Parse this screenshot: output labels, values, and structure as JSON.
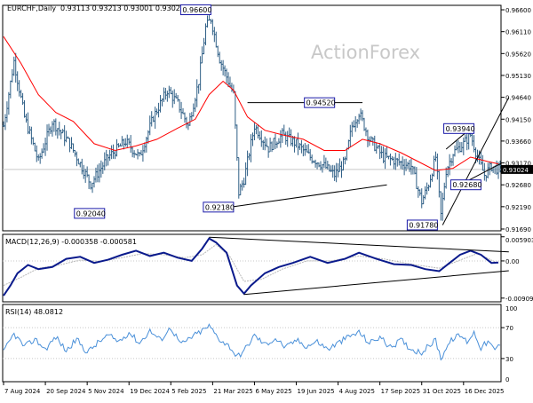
{
  "header": {
    "symbol": "EURCHF,Daily",
    "ohlc": "0.93113 0.93213 0.93001 0.93024"
  },
  "watermark": "ActionForex",
  "colors": {
    "bars": "#2f5f86",
    "ma": "#ff0000",
    "macd_line": "#0a1a8c",
    "signal_line": "#b8b8b8",
    "rsi_line": "#4a90d9",
    "trendline": "#000000",
    "grid": "#c8c8c8",
    "current_price_box": "#000000"
  },
  "chart_data": [
    {
      "type": "bar",
      "panel": "price",
      "title": "EURCHF,Daily",
      "y_ticks": [
        "0.96600",
        "0.96110",
        "0.95620",
        "0.95130",
        "0.94640",
        "0.94150",
        "0.93660",
        "0.93170",
        "0.92680",
        "0.92190",
        "0.91690"
      ],
      "ylim": [
        0.9165,
        0.967
      ],
      "current_price": "0.93024",
      "x_labels": [
        "7 Aug 2024",
        "20 Sep 2024",
        "5 Nov 2024",
        "19 Dec 2024",
        "5 Feb 2025",
        "21 Mar 2025",
        "6 May 2025",
        "19 Jun 2025",
        "4 Aug 2025",
        "17 Sep 2025",
        "31 Oct 2025",
        "16 Dec 2025"
      ],
      "anchors": [
        {
          "i": 0,
          "v": 0.94
        },
        {
          "i": 6,
          "v": 0.9545
        },
        {
          "i": 12,
          "v": 0.942
        },
        {
          "i": 20,
          "v": 0.932
        },
        {
          "i": 28,
          "v": 0.941
        },
        {
          "i": 38,
          "v": 0.936
        },
        {
          "i": 50,
          "v": 0.927
        },
        {
          "i": 60,
          "v": 0.933
        },
        {
          "i": 70,
          "v": 0.9365
        },
        {
          "i": 78,
          "v": 0.933
        },
        {
          "i": 86,
          "v": 0.942
        },
        {
          "i": 94,
          "v": 0.948
        },
        {
          "i": 100,
          "v": 0.945
        },
        {
          "i": 106,
          "v": 0.94
        },
        {
          "i": 112,
          "v": 0.95
        },
        {
          "i": 116,
          "v": 0.962
        },
        {
          "i": 119,
          "v": 0.964
        },
        {
          "i": 124,
          "v": 0.955
        },
        {
          "i": 128,
          "v": 0.951
        },
        {
          "i": 132,
          "v": 0.947
        },
        {
          "i": 135,
          "v": 0.925
        },
        {
          "i": 138,
          "v": 0.928
        },
        {
          "i": 144,
          "v": 0.94
        },
        {
          "i": 152,
          "v": 0.935
        },
        {
          "i": 160,
          "v": 0.938
        },
        {
          "i": 168,
          "v": 0.936
        },
        {
          "i": 176,
          "v": 0.933
        },
        {
          "i": 184,
          "v": 0.931
        },
        {
          "i": 190,
          "v": 0.929
        },
        {
          "i": 196,
          "v": 0.932
        },
        {
          "i": 200,
          "v": 0.94
        },
        {
          "i": 204,
          "v": 0.943
        },
        {
          "i": 210,
          "v": 0.937
        },
        {
          "i": 218,
          "v": 0.933
        },
        {
          "i": 226,
          "v": 0.932
        },
        {
          "i": 234,
          "v": 0.931
        },
        {
          "i": 240,
          "v": 0.923
        },
        {
          "i": 244,
          "v": 0.927
        },
        {
          "i": 248,
          "v": 0.933
        },
        {
          "i": 251,
          "v": 0.92
        },
        {
          "i": 254,
          "v": 0.93
        },
        {
          "i": 258,
          "v": 0.934
        },
        {
          "i": 264,
          "v": 0.936
        },
        {
          "i": 268,
          "v": 0.938
        },
        {
          "i": 272,
          "v": 0.933
        },
        {
          "i": 276,
          "v": 0.929
        },
        {
          "i": 280,
          "v": 0.931
        },
        {
          "i": 284,
          "v": 0.9302
        }
      ],
      "moving_average": [
        {
          "i": 0,
          "v": 0.96
        },
        {
          "i": 10,
          "v": 0.954
        },
        {
          "i": 20,
          "v": 0.947
        },
        {
          "i": 30,
          "v": 0.943
        },
        {
          "i": 40,
          "v": 0.941
        },
        {
          "i": 52,
          "v": 0.936
        },
        {
          "i": 64,
          "v": 0.9345
        },
        {
          "i": 76,
          "v": 0.9355
        },
        {
          "i": 88,
          "v": 0.937
        },
        {
          "i": 100,
          "v": 0.9395
        },
        {
          "i": 110,
          "v": 0.9415
        },
        {
          "i": 118,
          "v": 0.947
        },
        {
          "i": 126,
          "v": 0.95
        },
        {
          "i": 132,
          "v": 0.948
        },
        {
          "i": 140,
          "v": 0.942
        },
        {
          "i": 150,
          "v": 0.939
        },
        {
          "i": 160,
          "v": 0.938
        },
        {
          "i": 172,
          "v": 0.937
        },
        {
          "i": 184,
          "v": 0.9345
        },
        {
          "i": 196,
          "v": 0.9345
        },
        {
          "i": 206,
          "v": 0.937
        },
        {
          "i": 216,
          "v": 0.936
        },
        {
          "i": 228,
          "v": 0.934
        },
        {
          "i": 238,
          "v": 0.932
        },
        {
          "i": 248,
          "v": 0.93
        },
        {
          "i": 258,
          "v": 0.9305
        },
        {
          "i": 268,
          "v": 0.933
        },
        {
          "i": 278,
          "v": 0.932
        },
        {
          "i": 284,
          "v": 0.9315
        }
      ],
      "labels": [
        {
          "text": "0.96600",
          "i": 119,
          "v": 0.966,
          "side": "left"
        },
        {
          "text": "0.94520",
          "i": 190,
          "v": 0.9452,
          "side": "left"
        },
        {
          "text": "0.93940",
          "i": 270,
          "v": 0.9394,
          "side": "left"
        },
        {
          "text": "0.92040",
          "i": 58,
          "v": 0.9204,
          "side": "left"
        },
        {
          "text": "0.92180",
          "i": 132,
          "v": 0.9218,
          "side": "left"
        },
        {
          "text": "0.92680",
          "i": 274,
          "v": 0.9268,
          "side": "left"
        },
        {
          "text": "0.91780",
          "i": 249,
          "v": 0.9178,
          "side": "left"
        }
      ],
      "trendlines": [
        {
          "from": {
            "i": 140,
            "v": 0.9452
          },
          "to": {
            "i": 206,
            "v": 0.9452
          }
        },
        {
          "from": {
            "i": 130,
            "v": 0.9218
          },
          "to": {
            "i": 220,
            "v": 0.9268
          }
        },
        {
          "from": {
            "i": 254,
            "v": 0.9348
          },
          "to": {
            "i": 268,
            "v": 0.9394
          }
        },
        {
          "from": {
            "i": 252,
            "v": 0.9178
          },
          "to": {
            "i": 290,
            "v": 0.9464
          }
        },
        {
          "from": {
            "i": 262,
            "v": 0.9268
          },
          "to": {
            "i": 286,
            "v": 0.9317
          }
        }
      ]
    },
    {
      "type": "line",
      "panel": "macd",
      "title": "MACD(12,26,9) -0.000358 -0.000581",
      "y_ticks": [
        "0.005903",
        "0.00",
        "-0.009098"
      ],
      "ylim": [
        -0.01,
        0.0065
      ],
      "macd": [
        {
          "i": 0,
          "v": -0.0085
        },
        {
          "i": 4,
          "v": -0.006
        },
        {
          "i": 8,
          "v": -0.003
        },
        {
          "i": 14,
          "v": -0.001
        },
        {
          "i": 20,
          "v": -0.002
        },
        {
          "i": 28,
          "v": -0.0015
        },
        {
          "i": 36,
          "v": 0.0005
        },
        {
          "i": 44,
          "v": 0.001
        },
        {
          "i": 52,
          "v": -0.0005
        },
        {
          "i": 60,
          "v": 0.0003
        },
        {
          "i": 68,
          "v": 0.0015
        },
        {
          "i": 76,
          "v": 0.0025
        },
        {
          "i": 84,
          "v": 0.0012
        },
        {
          "i": 92,
          "v": 0.002
        },
        {
          "i": 100,
          "v": 0.0008
        },
        {
          "i": 108,
          "v": 0.0
        },
        {
          "i": 114,
          "v": 0.003
        },
        {
          "i": 118,
          "v": 0.0055
        },
        {
          "i": 122,
          "v": 0.0045
        },
        {
          "i": 128,
          "v": 0.002
        },
        {
          "i": 134,
          "v": -0.006
        },
        {
          "i": 138,
          "v": -0.008
        },
        {
          "i": 142,
          "v": -0.006
        },
        {
          "i": 150,
          "v": -0.003
        },
        {
          "i": 158,
          "v": -0.0015
        },
        {
          "i": 166,
          "v": -0.0005
        },
        {
          "i": 176,
          "v": 0.001
        },
        {
          "i": 186,
          "v": -0.0005
        },
        {
          "i": 196,
          "v": 0.0005
        },
        {
          "i": 204,
          "v": 0.002
        },
        {
          "i": 214,
          "v": 0.0005
        },
        {
          "i": 224,
          "v": -0.0008
        },
        {
          "i": 234,
          "v": -0.001
        },
        {
          "i": 242,
          "v": -0.002
        },
        {
          "i": 250,
          "v": -0.0025
        },
        {
          "i": 256,
          "v": -0.0005
        },
        {
          "i": 262,
          "v": 0.0015
        },
        {
          "i": 268,
          "v": 0.0025
        },
        {
          "i": 274,
          "v": 0.0015
        },
        {
          "i": 280,
          "v": -0.0005
        },
        {
          "i": 284,
          "v": -0.0004
        }
      ],
      "signal": [
        {
          "i": 0,
          "v": -0.006
        },
        {
          "i": 10,
          "v": -0.004
        },
        {
          "i": 20,
          "v": -0.0018
        },
        {
          "i": 32,
          "v": -0.001
        },
        {
          "i": 44,
          "v": 0.0002
        },
        {
          "i": 56,
          "v": -0.0001
        },
        {
          "i": 68,
          "v": 0.0008
        },
        {
          "i": 80,
          "v": 0.0018
        },
        {
          "i": 92,
          "v": 0.0015
        },
        {
          "i": 104,
          "v": 0.0008
        },
        {
          "i": 114,
          "v": 0.0015
        },
        {
          "i": 122,
          "v": 0.004
        },
        {
          "i": 130,
          "v": 0.001
        },
        {
          "i": 138,
          "v": -0.005
        },
        {
          "i": 148,
          "v": -0.0045
        },
        {
          "i": 160,
          "v": -0.002
        },
        {
          "i": 174,
          "v": 0.0
        },
        {
          "i": 188,
          "v": 0.0
        },
        {
          "i": 204,
          "v": 0.0012
        },
        {
          "i": 218,
          "v": 0.0005
        },
        {
          "i": 234,
          "v": -0.0008
        },
        {
          "i": 250,
          "v": -0.0018
        },
        {
          "i": 262,
          "v": 0.0002
        },
        {
          "i": 272,
          "v": 0.0018
        },
        {
          "i": 284,
          "v": -0.0006
        }
      ],
      "trendlines": [
        {
          "from": {
            "i": 118,
            "v": 0.0058
          },
          "to": {
            "i": 290,
            "v": 0.0022
          }
        },
        {
          "from": {
            "i": 138,
            "v": -0.0082
          },
          "to": {
            "i": 290,
            "v": -0.0024
          }
        }
      ]
    },
    {
      "type": "line",
      "panel": "rsi",
      "title": "RSI(14) 48.0812",
      "y_ticks": [
        "100",
        "70",
        "30",
        "0"
      ],
      "ylim": [
        0,
        100
      ],
      "levels": [
        70,
        30
      ],
      "rsi": [
        {
          "i": 0,
          "v": 38
        },
        {
          "i": 6,
          "v": 62
        },
        {
          "i": 12,
          "v": 45
        },
        {
          "i": 18,
          "v": 55
        },
        {
          "i": 24,
          "v": 42
        },
        {
          "i": 30,
          "v": 58
        },
        {
          "i": 36,
          "v": 40
        },
        {
          "i": 42,
          "v": 55
        },
        {
          "i": 48,
          "v": 38
        },
        {
          "i": 54,
          "v": 50
        },
        {
          "i": 60,
          "v": 60
        },
        {
          "i": 66,
          "v": 52
        },
        {
          "i": 72,
          "v": 64
        },
        {
          "i": 78,
          "v": 50
        },
        {
          "i": 84,
          "v": 66
        },
        {
          "i": 90,
          "v": 54
        },
        {
          "i": 96,
          "v": 70
        },
        {
          "i": 102,
          "v": 48
        },
        {
          "i": 108,
          "v": 58
        },
        {
          "i": 114,
          "v": 66
        },
        {
          "i": 118,
          "v": 72
        },
        {
          "i": 124,
          "v": 55
        },
        {
          "i": 130,
          "v": 45
        },
        {
          "i": 134,
          "v": 32
        },
        {
          "i": 138,
          "v": 40
        },
        {
          "i": 144,
          "v": 60
        },
        {
          "i": 150,
          "v": 48
        },
        {
          "i": 156,
          "v": 56
        },
        {
          "i": 162,
          "v": 44
        },
        {
          "i": 168,
          "v": 54
        },
        {
          "i": 174,
          "v": 46
        },
        {
          "i": 180,
          "v": 52
        },
        {
          "i": 186,
          "v": 42
        },
        {
          "i": 192,
          "v": 50
        },
        {
          "i": 198,
          "v": 58
        },
        {
          "i": 204,
          "v": 64
        },
        {
          "i": 210,
          "v": 50
        },
        {
          "i": 216,
          "v": 58
        },
        {
          "i": 222,
          "v": 44
        },
        {
          "i": 228,
          "v": 54
        },
        {
          "i": 234,
          "v": 42
        },
        {
          "i": 240,
          "v": 38
        },
        {
          "i": 244,
          "v": 46
        },
        {
          "i": 248,
          "v": 54
        },
        {
          "i": 251,
          "v": 30
        },
        {
          "i": 254,
          "v": 44
        },
        {
          "i": 258,
          "v": 56
        },
        {
          "i": 262,
          "v": 60
        },
        {
          "i": 266,
          "v": 52
        },
        {
          "i": 270,
          "v": 64
        },
        {
          "i": 274,
          "v": 44
        },
        {
          "i": 278,
          "v": 52
        },
        {
          "i": 282,
          "v": 40
        },
        {
          "i": 284,
          "v": 48
        }
      ]
    }
  ]
}
